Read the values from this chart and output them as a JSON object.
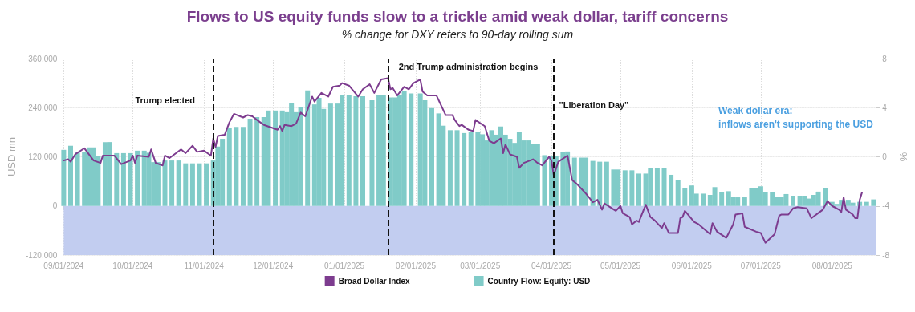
{
  "chart_data": {
    "type": "bar",
    "title": "Flows to US equity funds slow to a trickle amid weak dollar, tariff concerns",
    "subtitle": "% change for DXY refers to 90-day rolling sum",
    "ylabel": "USD mn",
    "y2label": "%",
    "series": [
      {
        "name": "Broad Dollar Index",
        "type": "line",
        "axis": "y2",
        "color": "#7d3c8f",
        "x": [
          "2024-09-01",
          "2024-09-03",
          "2024-09-04",
          "2024-09-06",
          "2024-09-10",
          "2024-09-14",
          "2024-09-17",
          "2024-09-18",
          "2024-09-23",
          "2024-09-26",
          "2024-09-30",
          "2024-10-01",
          "2024-10-02",
          "2024-10-03",
          "2024-10-08",
          "2024-10-09",
          "2024-10-11",
          "2024-10-14",
          "2024-10-15",
          "2024-10-17",
          "2024-10-22",
          "2024-10-24",
          "2024-10-27",
          "2024-10-29",
          "2024-11-01",
          "2024-11-04",
          "2024-11-05",
          "2024-11-06",
          "2024-11-07",
          "2024-11-10",
          "2024-11-12",
          "2024-11-14",
          "2024-11-18",
          "2024-11-20",
          "2024-11-22",
          "2024-11-24",
          "2024-11-27",
          "2024-11-30",
          "2024-12-03",
          "2024-12-04",
          "2024-12-05",
          "2024-12-06",
          "2024-12-09",
          "2024-12-11",
          "2024-12-13",
          "2024-12-15",
          "2024-12-18",
          "2024-12-19",
          "2024-12-22",
          "2024-12-25",
          "2024-12-27",
          "2024-12-30",
          "2024-12-31",
          "2025-01-03",
          "2025-01-07",
          "2025-01-09",
          "2025-01-12",
          "2025-01-14",
          "2025-01-17",
          "2025-01-20",
          "2025-01-21",
          "2025-01-22",
          "2025-01-24",
          "2025-01-27",
          "2025-01-29",
          "2025-01-31",
          "2025-02-03",
          "2025-02-04",
          "2025-02-06",
          "2025-02-10",
          "2025-02-12",
          "2025-02-14",
          "2025-02-17",
          "2025-02-18",
          "2025-02-20",
          "2025-02-21",
          "2025-02-24",
          "2025-02-26",
          "2025-02-27",
          "2025-03-03",
          "2025-03-05",
          "2025-03-07",
          "2025-03-10",
          "2025-03-11",
          "2025-03-12",
          "2025-03-14",
          "2025-03-17",
          "2025-03-18",
          "2025-03-20",
          "2025-03-24",
          "2025-03-26",
          "2025-03-28",
          "2025-03-31",
          "2025-04-01",
          "2025-04-02",
          "2025-04-04",
          "2025-04-08",
          "2025-04-10",
          "2025-04-12",
          "2025-04-16",
          "2025-04-19",
          "2025-04-21",
          "2025-04-23",
          "2025-04-24",
          "2025-04-29",
          "2025-05-01",
          "2025-05-02",
          "2025-05-05",
          "2025-05-06",
          "2025-05-08",
          "2025-05-09",
          "2025-05-12",
          "2025-05-14",
          "2025-05-16",
          "2025-05-19",
          "2025-05-20",
          "2025-05-22",
          "2025-05-26",
          "2025-05-27",
          "2025-05-28",
          "2025-05-29",
          "2025-06-02",
          "2025-06-04",
          "2025-06-09",
          "2025-06-10",
          "2025-06-12",
          "2025-06-16",
          "2025-06-19",
          "2025-06-20",
          "2025-06-23",
          "2025-06-24",
          "2025-06-29",
          "2025-07-01",
          "2025-07-03",
          "2025-07-07",
          "2025-07-09",
          "2025-07-10",
          "2025-07-13",
          "2025-07-15",
          "2025-07-17",
          "2025-07-21",
          "2025-07-23",
          "2025-07-28",
          "2025-07-30",
          "2025-08-01",
          "2025-08-04",
          "2025-08-05",
          "2025-08-06",
          "2025-08-07",
          "2025-08-10",
          "2025-08-11",
          "2025-08-12",
          "2025-08-13",
          "2025-08-14"
        ],
        "values": [
          -0.3,
          -0.2,
          -0.4,
          0.2,
          0.7,
          -0.3,
          -0.5,
          0.1,
          0.1,
          -0.6,
          -0.3,
          0.1,
          -0.5,
          0.1,
          0.0,
          0.6,
          -0.5,
          -0.7,
          0.1,
          -0.1,
          0.6,
          0.3,
          0.9,
          0.4,
          0.5,
          0.1,
          1.5,
          0.8,
          1.7,
          1.8,
          2.8,
          3.5,
          3.2,
          3.4,
          3.3,
          3.0,
          2.6,
          2.4,
          2.2,
          2.5,
          2.1,
          2.6,
          2.5,
          2.7,
          3.6,
          3.3,
          4.9,
          4.5,
          5.2,
          4.9,
          5.7,
          5.8,
          6.0,
          5.8,
          4.9,
          5.5,
          5.9,
          5.2,
          6.3,
          6.4,
          5.5,
          5.6,
          5.0,
          5.7,
          5.5,
          6.0,
          6.3,
          5.3,
          5.0,
          5.0,
          4.2,
          3.4,
          3.4,
          3.0,
          2.5,
          2.6,
          2.2,
          2.1,
          3.0,
          2.5,
          1.3,
          1.1,
          1.5,
          0.3,
          1.0,
          0.2,
          0.0,
          -0.9,
          -0.5,
          -0.2,
          -0.5,
          -0.7,
          0.0,
          -0.3,
          -1.5,
          -0.4,
          0.1,
          -1.9,
          -2.2,
          -3.0,
          -3.7,
          -3.5,
          -4.3,
          -3.8,
          -4.4,
          -4.0,
          -4.6,
          -4.9,
          -5.5,
          -5.2,
          -5.3,
          -3.9,
          -4.9,
          -5.2,
          -5.8,
          -5.4,
          -6.2,
          -6.2,
          -5.0,
          -4.9,
          -4.4,
          -5.3,
          -5.5,
          -6.3,
          -5.4,
          -6.1,
          -6.6,
          -5.5,
          -4.7,
          -4.6,
          -5.7,
          -6.1,
          -6.2,
          -7.0,
          -6.3,
          -4.8,
          -4.7,
          -4.7,
          -4.2,
          -4.1,
          -4.2,
          -5.0,
          -4.3,
          -3.6,
          -4.0,
          -4.3,
          -4.5,
          -3.3,
          -4.3,
          -4.7,
          -5.0,
          -5.0,
          -3.5,
          -2.9
        ]
      },
      {
        "name": "Country Flow: Equity: USD",
        "color": "#80cbc8",
        "x": [
          "2024-09-01",
          "2024-09-04",
          "2024-09-07",
          "2024-09-10",
          "2024-09-12",
          "2024-09-14",
          "2024-09-16",
          "2024-09-19",
          "2024-09-21",
          "2024-09-24",
          "2024-09-27",
          "2024-09-30",
          "2024-10-03",
          "2024-10-06",
          "2024-10-08",
          "2024-10-10",
          "2024-10-12",
          "2024-10-15",
          "2024-10-18",
          "2024-10-21",
          "2024-10-24",
          "2024-10-27",
          "2024-10-30",
          "2024-11-02",
          "2024-11-05",
          "2024-11-07",
          "2024-11-09",
          "2024-11-12",
          "2024-11-15",
          "2024-11-18",
          "2024-11-21",
          "2024-11-24",
          "2024-11-27",
          "2024-11-29",
          "2024-12-02",
          "2024-12-05",
          "2024-12-07",
          "2024-12-09",
          "2024-12-11",
          "2024-12-13",
          "2024-12-16",
          "2024-12-19",
          "2024-12-21",
          "2024-12-23",
          "2024-12-26",
          "2024-12-29",
          "2024-12-31",
          "2025-01-03",
          "2025-01-06",
          "2025-01-09",
          "2025-01-13",
          "2025-01-16",
          "2025-01-18",
          "2025-01-21",
          "2025-01-23",
          "2025-01-25",
          "2025-01-27",
          "2025-01-30",
          "2025-02-03",
          "2025-02-05",
          "2025-02-08",
          "2025-02-11",
          "2025-02-13",
          "2025-02-16",
          "2025-02-19",
          "2025-02-22",
          "2025-02-25",
          "2025-02-28",
          "2025-03-02",
          "2025-03-04",
          "2025-03-06",
          "2025-03-08",
          "2025-03-10",
          "2025-03-12",
          "2025-03-14",
          "2025-03-16",
          "2025-03-18",
          "2025-03-20",
          "2025-03-22",
          "2025-03-24",
          "2025-03-26",
          "2025-03-29",
          "2025-04-01",
          "2025-04-03",
          "2025-04-06",
          "2025-04-08",
          "2025-04-11",
          "2025-04-14",
          "2025-04-16",
          "2025-04-19",
          "2025-04-22",
          "2025-04-25",
          "2025-04-28",
          "2025-04-30",
          "2025-05-03",
          "2025-05-06",
          "2025-05-09",
          "2025-05-12",
          "2025-05-14",
          "2025-05-17",
          "2025-05-20",
          "2025-05-23",
          "2025-05-26",
          "2025-05-29",
          "2025-06-01",
          "2025-06-03",
          "2025-06-06",
          "2025-06-09",
          "2025-06-11",
          "2025-06-14",
          "2025-06-17",
          "2025-06-19",
          "2025-06-21",
          "2025-06-24",
          "2025-06-27",
          "2025-06-29",
          "2025-07-01",
          "2025-07-03",
          "2025-07-06",
          "2025-07-08",
          "2025-07-10",
          "2025-07-12",
          "2025-07-15",
          "2025-07-18",
          "2025-07-20",
          "2025-07-22",
          "2025-07-24",
          "2025-07-26",
          "2025-07-29",
          "2025-08-01",
          "2025-08-03",
          "2025-08-05",
          "2025-08-08",
          "2025-08-10",
          "2025-08-13",
          "2025-08-16",
          "2025-08-19"
        ],
        "values": [
          137000,
          147000,
          131000,
          131000,
          143000,
          143000,
          121000,
          156000,
          156000,
          129000,
          129000,
          129000,
          135000,
          135000,
          130000,
          107000,
          107000,
          111000,
          111000,
          111000,
          104000,
          104000,
          104000,
          104000,
          111000,
          145000,
          164000,
          190000,
          193000,
          193000,
          213000,
          217000,
          217000,
          233000,
          233000,
          233000,
          229000,
          252000,
          229000,
          242000,
          282000,
          248000,
          264000,
          237000,
          250000,
          250000,
          271000,
          271000,
          268000,
          268000,
          258000,
          272000,
          272000,
          265000,
          265000,
          270000,
          280000,
          275000,
          275000,
          258000,
          239000,
          226000,
          196000,
          185000,
          185000,
          178000,
          180000,
          180000,
          175000,
          160000,
          185000,
          174000,
          194000,
          174000,
          164000,
          154000,
          180000,
          160000,
          160000,
          151000,
          151000,
          124000,
          121000,
          121000,
          131000,
          133000,
          118000,
          118000,
          118000,
          110000,
          108000,
          108000,
          89000,
          89000,
          87000,
          87000,
          79000,
          79000,
          92000,
          92000,
          92000,
          76000,
          63000,
          43000,
          50000,
          30000,
          30000,
          27000,
          46000,
          33000,
          36000,
          23000,
          21000,
          21000,
          43000,
          43000,
          48000,
          33000,
          33000,
          23000,
          23000,
          29000,
          25000,
          25000,
          25000,
          18000,
          27000,
          35000,
          43000,
          10000,
          5000,
          15000,
          15000,
          8000,
          10000,
          10000,
          16000
        ]
      }
    ],
    "xlim": [
      "2024-09-01",
      "2025-08-20"
    ],
    "xticks": [
      {
        "value": "2024-09-01",
        "label": "09/01/2024"
      },
      {
        "value": "2024-10-01",
        "label": "10/01/2024"
      },
      {
        "value": "2024-11-01",
        "label": "11/01/2024"
      },
      {
        "value": "2024-12-01",
        "label": "12/01/2024"
      },
      {
        "value": "2025-01-01",
        "label": "01/01/2025"
      },
      {
        "value": "2025-02-01",
        "label": "02/01/2025"
      },
      {
        "value": "2025-03-01",
        "label": "03/01/2025"
      },
      {
        "value": "2025-04-01",
        "label": "04/01/2025"
      },
      {
        "value": "2025-05-01",
        "label": "05/01/2025"
      },
      {
        "value": "2025-06-01",
        "label": "06/01/2025"
      },
      {
        "value": "2025-07-01",
        "label": "07/01/2025"
      },
      {
        "value": "2025-08-01",
        "label": "08/01/2025"
      }
    ],
    "ylim": [
      -120000,
      360000
    ],
    "yticks": [
      {
        "value": -120000,
        "label": "-120,000"
      },
      0,
      {
        "value": 120000,
        "label": "120,000"
      },
      {
        "value": 240000,
        "label": "240,000"
      },
      {
        "value": 360000,
        "label": "360,000"
      }
    ],
    "y2lim": [
      -8,
      8
    ],
    "y2ticks": [
      -8,
      -4,
      0,
      4,
      8
    ],
    "bands": [
      {
        "axis": "y",
        "from": -120000,
        "to": 0,
        "color": "#c2cdf0"
      }
    ],
    "ref_lines": [
      {
        "axis": "x",
        "value": "2024-11-05",
        "label": "Trump elected",
        "color": "#111111",
        "line_style": "dashed"
      },
      {
        "axis": "x",
        "value": "2025-01-20",
        "label": "2nd Trump administration begins",
        "color": "#111111",
        "line_style": "dashed"
      },
      {
        "axis": "x",
        "value": "2025-04-02",
        "label": "\"Liberation Day\"",
        "color": "#111111",
        "line_style": "dashed"
      }
    ],
    "annotations": [
      "Weak dollar era:\ninflows aren't supporting the USD"
    ],
    "grid": true,
    "legend": "bottom",
    "marker": "none"
  }
}
